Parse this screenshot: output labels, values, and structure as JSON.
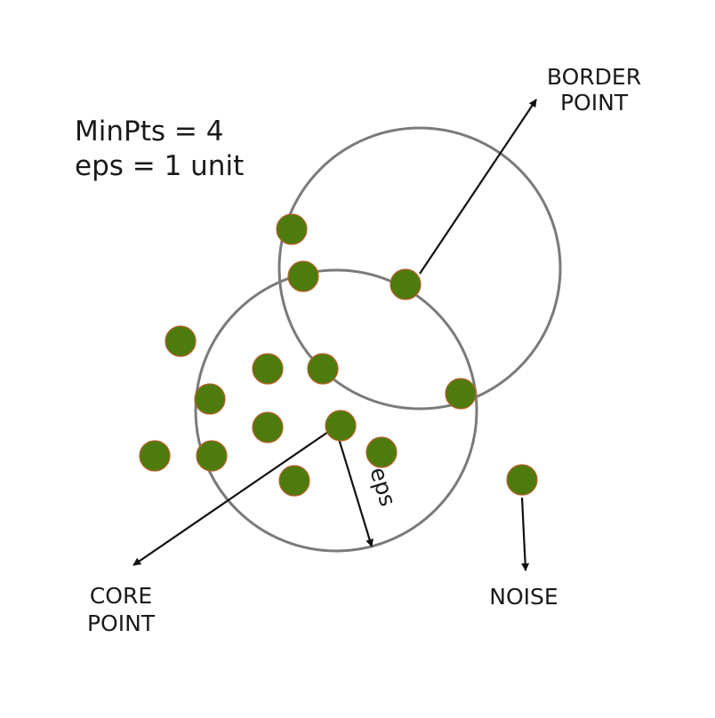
{
  "params": {
    "minpts": "MinPts = 4",
    "eps": "eps = 1 unit"
  },
  "labels": {
    "border_line1": "BORDER",
    "border_line2": "POINT",
    "core_line1": "CORE",
    "core_line2": "POINT",
    "noise": "NOISE",
    "eps_radius": "eps"
  },
  "colors": {
    "point_fill": "#4e7b0d",
    "circle_stroke": "#7a7a7a",
    "arrow": "#111111",
    "text": "#1a1a1a"
  }
}
